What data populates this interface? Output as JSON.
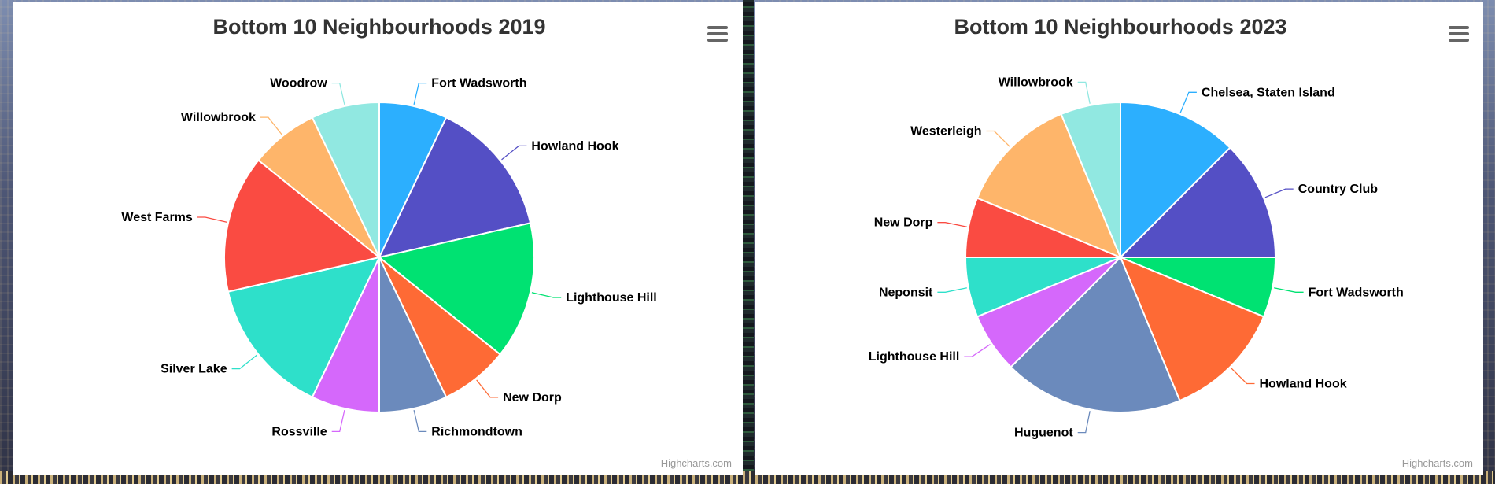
{
  "charts": [
    {
      "menu_icon": "hamburger-menu-icon",
      "credit": "Highcharts.com",
      "chart_data": {
        "type": "pie",
        "title": "Bottom 10 Neighbourhoods 2019",
        "categories": [
          "Fort Wadsworth",
          "Howland Hook",
          "Lighthouse Hill",
          "New Dorp",
          "Richmondtown",
          "Rossville",
          "Silver Lake",
          "West Farms",
          "Willowbrook",
          "Woodrow"
        ],
        "values": [
          7.1,
          14.3,
          14.3,
          7.1,
          7.1,
          7.1,
          14.3,
          14.3,
          7.1,
          7.1
        ],
        "colors": [
          "#2caffe",
          "#544fc5",
          "#00e272",
          "#fe6a35",
          "#6b8abc",
          "#d568fb",
          "#2ee0ca",
          "#fa4b42",
          "#feb56a",
          "#91e8e1"
        ]
      }
    },
    {
      "menu_icon": "hamburger-menu-icon",
      "credit": "Highcharts.com",
      "chart_data": {
        "type": "pie",
        "title": "Bottom 10 Neighbourhoods 2023",
        "categories": [
          "Chelsea, Staten Island",
          "Country Club",
          "Fort Wadsworth",
          "Howland Hook",
          "Huguenot",
          "Lighthouse Hill",
          "Neponsit",
          "New Dorp",
          "Westerleigh",
          "Willowbrook"
        ],
        "values": [
          12.5,
          12.5,
          6.25,
          12.5,
          18.75,
          6.25,
          6.25,
          6.25,
          12.5,
          6.25
        ],
        "colors": [
          "#2caffe",
          "#544fc5",
          "#00e272",
          "#fe6a35",
          "#6b8abc",
          "#d568fb",
          "#2ee0ca",
          "#fa4b42",
          "#feb56a",
          "#91e8e1"
        ]
      }
    }
  ]
}
